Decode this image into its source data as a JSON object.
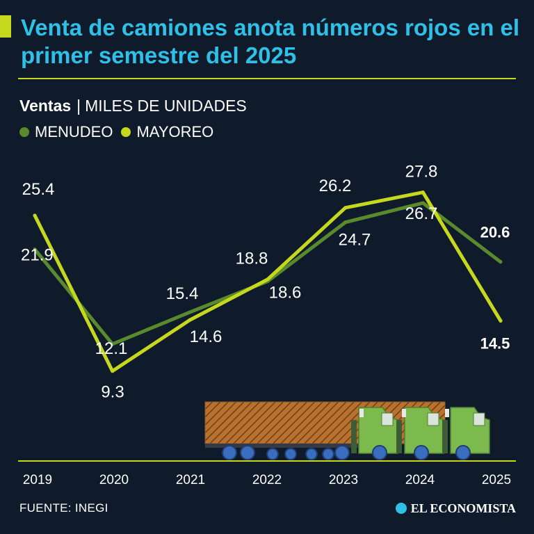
{
  "header": {
    "title": "Venta de camiones anota números rojos en el primer semestre del 2025",
    "subtitle_bold": "Ventas",
    "subtitle_separator": "|",
    "subtitle_unit": "MILES DE UNIDADES"
  },
  "colors": {
    "background": "#0f1b2b",
    "title": "#2fc0e8",
    "accent": "#c5d81e",
    "menudeo": "#5a8a2e",
    "mayoreo": "#c5d81e",
    "text": "#ffffff"
  },
  "chart_data": {
    "type": "line",
    "title": "Venta de camiones anota números rojos en el primer semestre del 2025",
    "ylabel": "Miles de unidades",
    "categories": [
      "2019",
      "2020",
      "2021",
      "2022",
      "2023",
      "2024",
      "2025"
    ],
    "ylim": [
      0,
      30
    ],
    "legend_position": "top-left",
    "series": [
      {
        "name": "MENUDEO",
        "values": [
          21.9,
          12.1,
          15.4,
          18.6,
          24.7,
          26.7,
          20.6
        ]
      },
      {
        "name": "MAYOREO",
        "values": [
          25.4,
          9.3,
          14.6,
          18.8,
          26.2,
          27.8,
          14.5
        ]
      }
    ]
  },
  "footer": {
    "source": "FUENTE: INEGI",
    "brand": "EL ECONOMISTA",
    "brand_icon": "el-economista-logo-icon"
  },
  "illustration": {
    "icon": "truck-convoy-icon"
  }
}
